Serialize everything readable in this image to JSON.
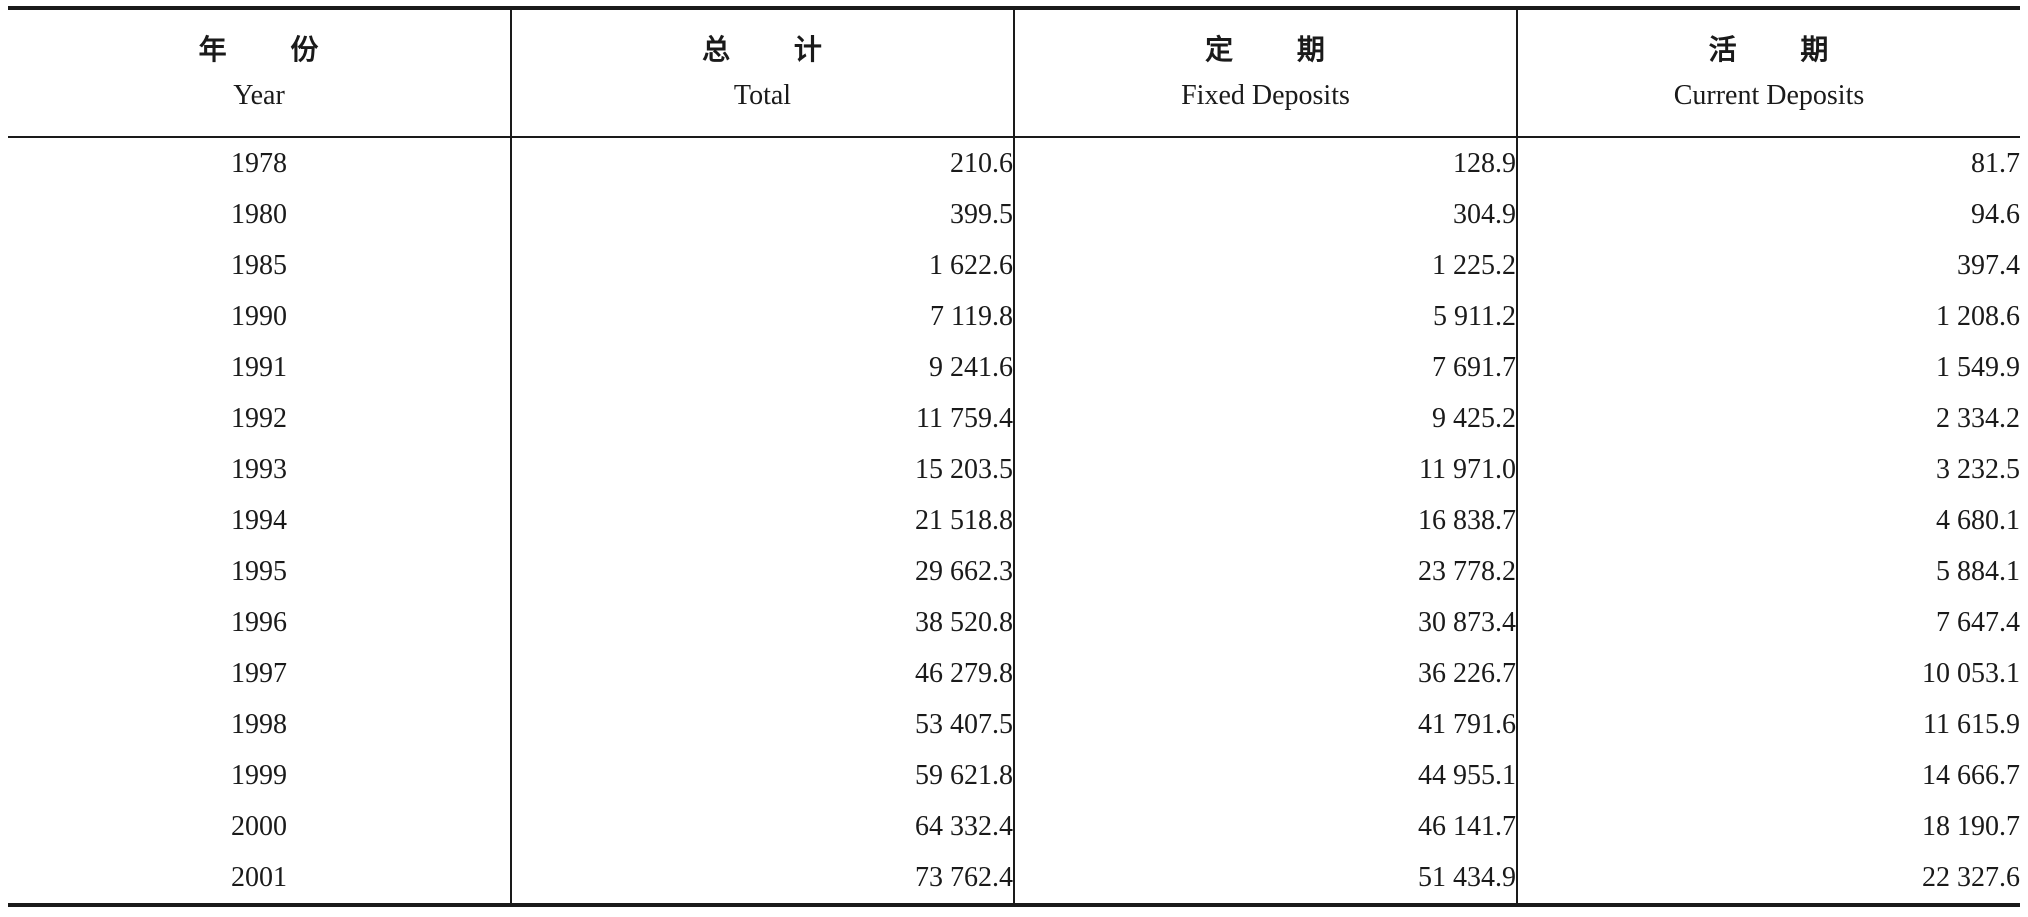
{
  "columns": [
    {
      "zh": "年 份",
      "en": "Year"
    },
    {
      "zh": "总 计",
      "en": "Total"
    },
    {
      "zh": "定 期",
      "en": "Fixed Deposits"
    },
    {
      "zh": "活 期",
      "en": "Current Deposits"
    }
  ],
  "rows": [
    {
      "year": "1978",
      "total": "210.6",
      "fixed": "128.9",
      "current": "81.7"
    },
    {
      "year": "1980",
      "total": "399.5",
      "fixed": "304.9",
      "current": "94.6"
    },
    {
      "year": "1985",
      "total": "1 622.6",
      "fixed": "1 225.2",
      "current": "397.4"
    },
    {
      "year": "1990",
      "total": "7 119.8",
      "fixed": "5 911.2",
      "current": "1 208.6"
    },
    {
      "year": "1991",
      "total": "9 241.6",
      "fixed": "7 691.7",
      "current": "1 549.9"
    },
    {
      "year": "1992",
      "total": "11 759.4",
      "fixed": "9 425.2",
      "current": "2 334.2"
    },
    {
      "year": "1993",
      "total": "15 203.5",
      "fixed": "11 971.0",
      "current": "3 232.5"
    },
    {
      "year": "1994",
      "total": "21 518.8",
      "fixed": "16 838.7",
      "current": "4 680.1"
    },
    {
      "year": "1995",
      "total": "29 662.3",
      "fixed": "23 778.2",
      "current": "5 884.1"
    },
    {
      "year": "1996",
      "total": "38 520.8",
      "fixed": "30 873.4",
      "current": "7 647.4"
    },
    {
      "year": "1997",
      "total": "46 279.8",
      "fixed": "36 226.7",
      "current": "10 053.1"
    },
    {
      "year": "1998",
      "total": "53 407.5",
      "fixed": "41 791.6",
      "current": "11 615.9"
    },
    {
      "year": "1999",
      "total": "59 621.8",
      "fixed": "44 955.1",
      "current": "14 666.7"
    },
    {
      "year": "2000",
      "total": "64 332.4",
      "fixed": "46 141.7",
      "current": "18 190.7"
    },
    {
      "year": "2001",
      "total": "73 762.4",
      "fixed": "51 434.9",
      "current": "22 327.6"
    }
  ]
}
